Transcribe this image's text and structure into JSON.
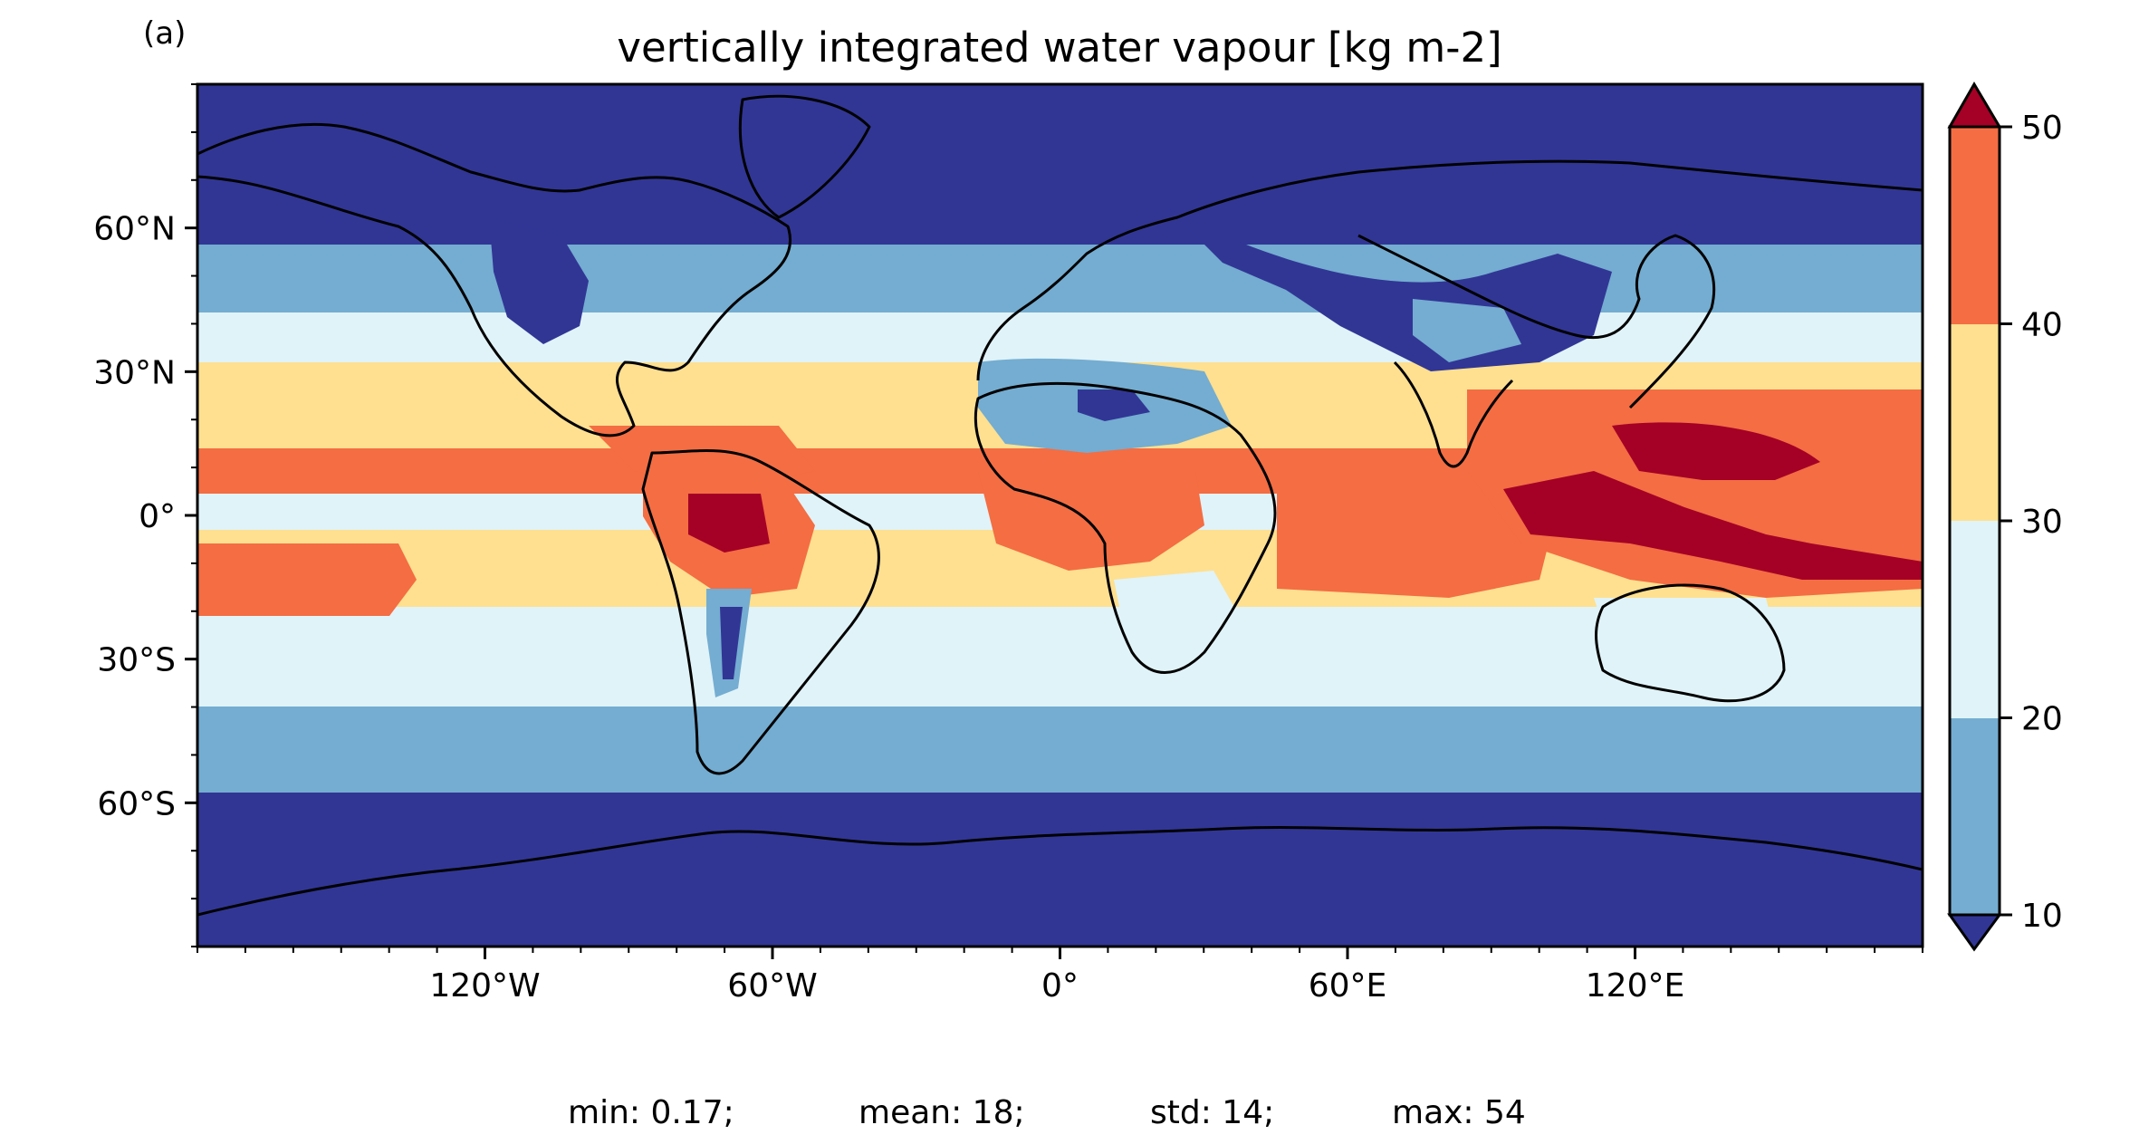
{
  "panel_label": "(a)",
  "title": "vertically integrated water vapour [kg m-2]",
  "stats": [
    "min: 0.17;",
    "mean: 18;",
    "std: 14;",
    "max: 54"
  ],
  "map": {
    "projection": "plate-carree",
    "lon_range": [
      -180,
      180
    ],
    "lat_range": [
      -90,
      90
    ],
    "lon_ticks": [
      {
        "value": -120,
        "label": "120°W"
      },
      {
        "value": -60,
        "label": "60°W"
      },
      {
        "value": 0,
        "label": "0°"
      },
      {
        "value": 60,
        "label": "60°E"
      },
      {
        "value": 120,
        "label": "120°E"
      }
    ],
    "lat_ticks": [
      {
        "value": 60,
        "label": "60°N"
      },
      {
        "value": 30,
        "label": "30°N"
      },
      {
        "value": 0,
        "label": "0°"
      },
      {
        "value": -30,
        "label": "30°S"
      },
      {
        "value": -60,
        "label": "60°S"
      }
    ]
  },
  "colorbar": {
    "levels": [
      10,
      20,
      30,
      40,
      50
    ],
    "labels": [
      "10",
      "20",
      "30",
      "40",
      "50"
    ],
    "extend": "both",
    "colors": {
      "under": "#313695",
      "c10_20": "#74add1",
      "c20_30": "#e0f3f8",
      "c30_40": "#fee090",
      "c40_50": "#f46d43",
      "over": "#a50026"
    }
  }
}
